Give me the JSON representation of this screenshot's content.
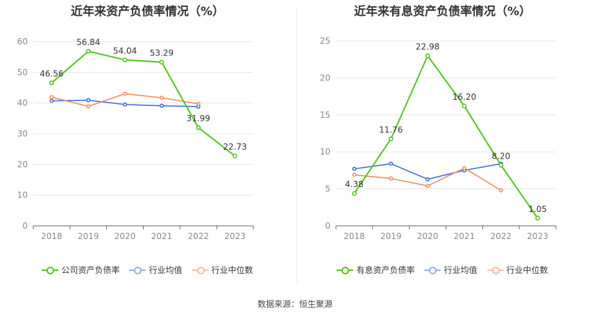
{
  "source_text": "数据来源：恒生聚源",
  "colors": {
    "primary": "#52c41a",
    "avg": "#3b6fd6",
    "median": "#ee8a5c",
    "grid": "#e6e6e6",
    "axis": "#888888"
  },
  "chart_data": [
    {
      "type": "line",
      "title": "近年来资产负债率情况（%）",
      "x": [
        "2018",
        "2019",
        "2020",
        "2021",
        "2022",
        "2023"
      ],
      "ylim": [
        0,
        60
      ],
      "yticks": [
        0,
        10,
        20,
        30,
        40,
        50,
        60
      ],
      "grid": true,
      "legend_position": "bottom",
      "series": [
        {
          "name": "公司资产负债率",
          "values": [
            46.56,
            56.84,
            54.04,
            53.29,
            31.99,
            22.73
          ],
          "labels": [
            "46.56",
            "56.84",
            "54.04",
            "53.29",
            "31.99",
            "22.73"
          ],
          "color": "#52c41a",
          "primary": true
        },
        {
          "name": "行业均值",
          "values": [
            40.7,
            40.9,
            39.5,
            39.1,
            38.8,
            null
          ],
          "color": "#3b6fd6"
        },
        {
          "name": "行业中位数",
          "values": [
            41.9,
            38.9,
            43.0,
            41.7,
            39.7,
            null
          ],
          "color": "#ee8a5c"
        }
      ]
    },
    {
      "type": "line",
      "title": "近年来有息资产负债率情况（%）",
      "x": [
        "2018",
        "2019",
        "2020",
        "2021",
        "2022",
        "2023"
      ],
      "ylim": [
        0,
        25
      ],
      "yticks": [
        0,
        5,
        10,
        15,
        20,
        25
      ],
      "grid": true,
      "legend_position": "bottom",
      "series": [
        {
          "name": "有息资产负债率",
          "values": [
            4.38,
            11.76,
            22.98,
            16.2,
            8.2,
            1.05
          ],
          "labels": [
            "4.38",
            "11.76",
            "22.98",
            "16.20",
            "8.20",
            "1.05"
          ],
          "color": "#52c41a",
          "primary": true
        },
        {
          "name": "行业均值",
          "values": [
            7.7,
            8.4,
            6.3,
            7.5,
            8.4,
            null
          ],
          "color": "#3b6fd6"
        },
        {
          "name": "行业中位数",
          "values": [
            6.9,
            6.4,
            5.4,
            7.8,
            4.8,
            null
          ],
          "color": "#ee8a5c"
        }
      ]
    }
  ]
}
